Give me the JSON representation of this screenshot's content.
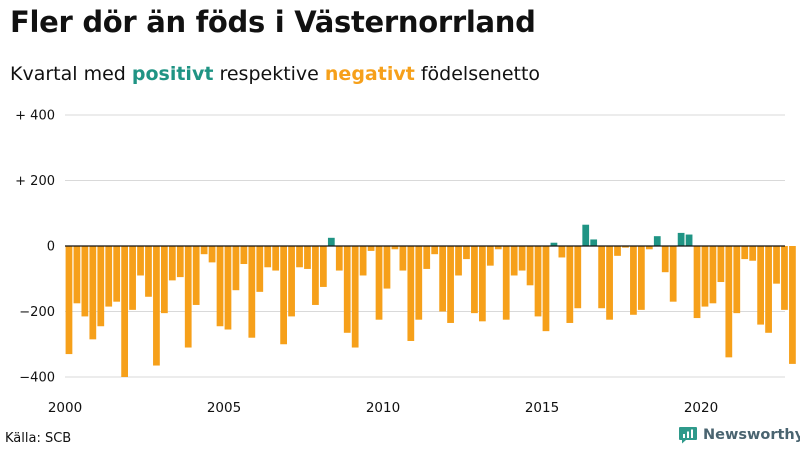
{
  "header": {
    "title": "Fler dör än föds i Västernorrland",
    "subtitle_pre": "Kvartal med ",
    "subtitle_pos": "positivt",
    "subtitle_mid": " respektive ",
    "subtitle_neg": "negativt",
    "subtitle_post": " födelsenetto"
  },
  "footer": {
    "source": "Källa: SCB",
    "brand": "Newsworthy"
  },
  "colors": {
    "positive": "#1f9484",
    "negative": "#f6a01a",
    "grid": "#d9d9d9",
    "zero_line": "#111111",
    "brand": "#4a6470"
  },
  "icons": {
    "brand": "newsworthy-logo-icon"
  },
  "chart_data": {
    "type": "bar",
    "x_start": "2000 Q1",
    "x_ticks": [
      "2000",
      "2005",
      "2010",
      "2015",
      "2020"
    ],
    "y_ticks": [
      -400,
      -200,
      0,
      200,
      400
    ],
    "y_tick_labels": [
      "−400",
      "−200",
      "0",
      "+ 200",
      "+ 400"
    ],
    "ylim": [
      -400,
      400
    ],
    "grid": true,
    "values": [
      -330,
      -175,
      -215,
      -285,
      -245,
      -185,
      -170,
      -400,
      -195,
      -90,
      -155,
      -365,
      -205,
      -105,
      -95,
      -310,
      -180,
      -25,
      -50,
      -245,
      -255,
      -135,
      -55,
      -280,
      -140,
      -65,
      -75,
      -300,
      -215,
      -65,
      -70,
      -180,
      -125,
      25,
      -75,
      -265,
      -310,
      -90,
      -15,
      -225,
      -130,
      -10,
      -75,
      -290,
      -225,
      -70,
      -25,
      -200,
      -235,
      -90,
      -40,
      -205,
      -230,
      -60,
      -10,
      -225,
      -90,
      -75,
      -120,
      -215,
      -260,
      10,
      -35,
      -235,
      -190,
      65,
      20,
      -190,
      -225,
      -30,
      -5,
      -210,
      -195,
      -10,
      30,
      -80,
      -170,
      40,
      35,
      -220,
      -185,
      -175,
      -110,
      -340,
      -205,
      -40,
      -45,
      -240,
      -265,
      -115,
      -195,
      -360
    ]
  }
}
